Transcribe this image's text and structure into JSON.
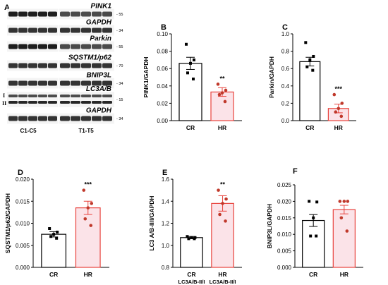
{
  "blot": {
    "panel_letter": "A",
    "rows": [
      {
        "label": "PINK1",
        "mw": "55"
      },
      {
        "label": "GAPDH",
        "mw": "34"
      },
      {
        "label": "Parkin",
        "mw": "55"
      },
      {
        "label": "SQSTM1/p62",
        "mw": "70"
      },
      {
        "label": "BNIP3L",
        "mw": "34"
      },
      {
        "label": "LC3A/B",
        "mw": "15"
      },
      {
        "label": "GAPDH",
        "mw": "34"
      }
    ],
    "lc3_forms": [
      "I",
      "II"
    ],
    "lanes": [
      "C1-C5",
      "T1-T5"
    ]
  },
  "colors": {
    "cr_point": "#000000",
    "hr_point": "#c0392b",
    "hr_bar": "#e8423c",
    "hr_fill": "#fbe3e8"
  },
  "chart_data": [
    {
      "panel": "B",
      "type": "bar",
      "categories": [
        "CR",
        "HR"
      ],
      "values": [
        0.066,
        0.033
      ],
      "errors": [
        0.007,
        0.005
      ],
      "points": [
        [
          0.088,
          0.07,
          0.066,
          0.055,
          0.048
        ],
        [
          0.042,
          0.035,
          0.032,
          0.03,
          0.022
        ]
      ],
      "significance": [
        "",
        "**"
      ],
      "ylabel": "PINK1/GAPDH",
      "ylim": [
        0.0,
        0.1
      ],
      "yticks": [
        "0.00",
        "0.02",
        "0.04",
        "0.06",
        "0.08",
        "0.10"
      ],
      "xticklabels": [
        "",
        ""
      ]
    },
    {
      "panel": "C",
      "type": "bar",
      "categories": [
        "CR",
        "HR"
      ],
      "values": [
        0.68,
        0.14
      ],
      "errors": [
        0.05,
        0.05
      ],
      "points": [
        [
          0.9,
          0.74,
          0.7,
          0.62,
          0.58
        ],
        [
          0.3,
          0.2,
          0.14,
          0.1,
          0.05
        ]
      ],
      "significance": [
        "",
        "***"
      ],
      "ylabel": "Parkin/GAPDH",
      "ylim": [
        0.0,
        1.0
      ],
      "yticks": [
        "0.0",
        "0.2",
        "0.4",
        "0.6",
        "0.8",
        "1.0"
      ],
      "xticklabels": [
        "",
        ""
      ]
    },
    {
      "panel": "D",
      "type": "bar",
      "categories": [
        "CR",
        "HR"
      ],
      "values": [
        0.0075,
        0.0135
      ],
      "errors": [
        0.0006,
        0.0015
      ],
      "points": [
        [
          0.0088,
          0.008,
          0.0075,
          0.007,
          0.0066
        ],
        [
          0.0175,
          0.0145,
          0.0135,
          0.011,
          0.0095
        ]
      ],
      "significance": [
        "",
        "***"
      ],
      "ylabel": "SQSTM1/p62/GAPDH",
      "ylim": [
        0.0,
        0.02
      ],
      "yticks": [
        "0.000",
        "0.005",
        "0.010",
        "0.015",
        "0.020"
      ],
      "xticklabels": [
        "",
        ""
      ]
    },
    {
      "panel": "E",
      "type": "bar",
      "categories": [
        "CR",
        "HR"
      ],
      "values": [
        1.07,
        1.38
      ],
      "errors": [
        0.01,
        0.07
      ],
      "points": [
        [
          1.08,
          1.07,
          1.07,
          1.06,
          1.06
        ],
        [
          1.5,
          1.42,
          1.38,
          1.28,
          1.22
        ]
      ],
      "significance": [
        "",
        "**"
      ],
      "ylabel": "LC3 A/B-II/I/GAPDH",
      "ylim": [
        0.8,
        1.6
      ],
      "yticks": [
        "0.8",
        "1.0",
        "1.2",
        "1.4",
        "1.6"
      ],
      "xticklabels": [
        "LC3A/B-II/I",
        "LC3A/B-II/I"
      ]
    },
    {
      "panel": "F",
      "type": "bar",
      "categories": [
        "CR",
        "HR"
      ],
      "values": [
        0.0142,
        0.0175
      ],
      "errors": [
        0.0018,
        0.0013
      ],
      "points": [
        [
          0.02,
          0.0198,
          0.015,
          0.0095,
          0.0095
        ],
        [
          0.02,
          0.02,
          0.02,
          0.015,
          0.011
        ]
      ],
      "significance": [
        "",
        ""
      ],
      "ylabel": "BNIP3L/GAPDH",
      "ylim": [
        0.0,
        0.025
      ],
      "yticks": [
        "0.000",
        "0.005",
        "0.010",
        "0.015",
        "0.020",
        "0.025"
      ],
      "xticklabels": [
        "",
        ""
      ]
    }
  ]
}
